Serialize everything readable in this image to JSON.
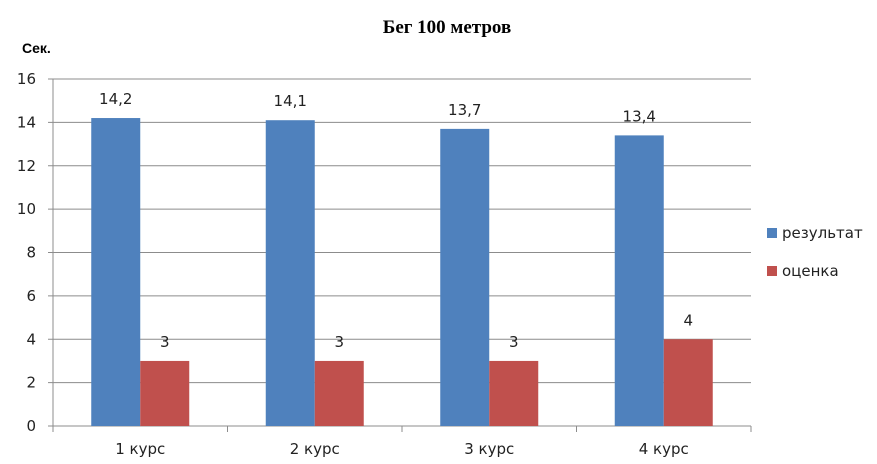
{
  "chart_data": {
    "type": "bar",
    "title": "Бег 100 метров",
    "ylabel": "Сек.",
    "xlabel": "",
    "categories": [
      "1 курс",
      "2 курс",
      "3 курс",
      "4 курс"
    ],
    "series": [
      {
        "name": "результат",
        "values": [
          14.2,
          14.1,
          13.7,
          13.4
        ],
        "labels": [
          "14,2",
          "14,1",
          "13,7",
          "13,4"
        ],
        "color": "#4f81bd"
      },
      {
        "name": "оценка",
        "values": [
          3,
          3,
          3,
          4
        ],
        "labels": [
          "3",
          "3",
          "3",
          "4"
        ],
        "color": "#c0504d"
      }
    ],
    "ylim": [
      0,
      16
    ],
    "yticks": [
      0,
      2,
      4,
      6,
      8,
      10,
      12,
      14,
      16
    ],
    "grid": true,
    "legend_position": "right"
  }
}
